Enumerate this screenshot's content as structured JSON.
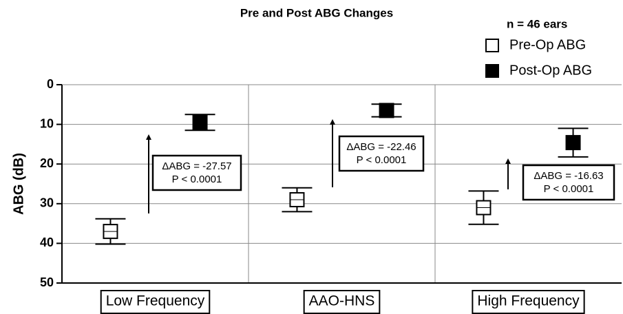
{
  "chart_data": {
    "type": "errorbar",
    "title": "Pre and Post ABG Changes",
    "ylabel": "ABG (dB)",
    "legend_title": "n = 46 ears",
    "categories": [
      "Low Frequency",
      "AAO-HNS",
      "High Frequency"
    ],
    "series": [
      {
        "name": "Pre-Op ABG",
        "color": "#ffffff",
        "values": [
          37,
          29,
          31
        ],
        "errors": [
          3.2,
          3,
          4.2
        ]
      },
      {
        "name": "Post-Op ABG",
        "color": "#000000",
        "values": [
          9.5,
          6.5,
          14.6
        ],
        "errors": [
          2,
          1.6,
          3.6
        ]
      }
    ],
    "annotations": [
      {
        "delta": "ΔABG = -27.57",
        "p": "P < 0.0001"
      },
      {
        "delta": "ΔABG = -22.46",
        "p": "P < 0.0001"
      },
      {
        "delta": "ΔABG = -16.63",
        "p": "P < 0.0001"
      }
    ],
    "ylim": [
      0,
      50
    ],
    "yticks": [
      0,
      10,
      20,
      30,
      40,
      50
    ],
    "y_inverted": true,
    "grid": true
  }
}
